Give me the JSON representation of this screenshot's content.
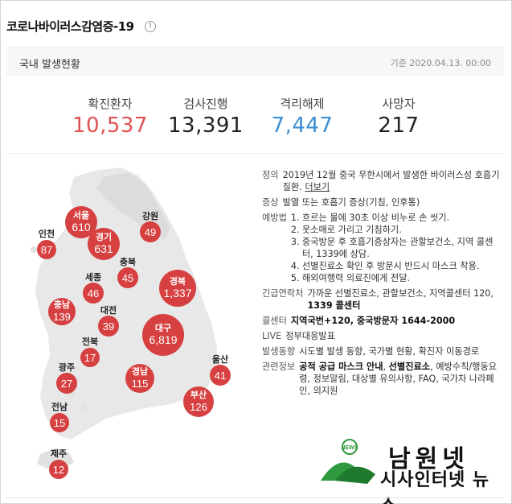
{
  "header": {
    "title": "코로나바이러스감염증-19",
    "info_icon": "!"
  },
  "subbar": {
    "title": "국내 발생현황",
    "date": "기준 2020.04.13. 00:00"
  },
  "stats": [
    {
      "label": "확진환자",
      "value": "10,537",
      "color": "#e05151"
    },
    {
      "label": "검사진행",
      "value": "13,391",
      "color": "#222222"
    },
    {
      "label": "격리해제",
      "value": "7,447",
      "color": "#3a8fd5"
    },
    {
      "label": "사망자",
      "value": "217",
      "color": "#222222"
    }
  ],
  "map": {
    "regions": [
      {
        "name": "서울",
        "count": "610"
      },
      {
        "name": "인천",
        "count": "87"
      },
      {
        "name": "경기",
        "count": "631"
      },
      {
        "name": "강원",
        "count": "49"
      },
      {
        "name": "충북",
        "count": "45"
      },
      {
        "name": "세종",
        "count": "46"
      },
      {
        "name": "충남",
        "count": "139"
      },
      {
        "name": "대전",
        "count": "39"
      },
      {
        "name": "경북",
        "count": "1,337"
      },
      {
        "name": "대구",
        "count": "6,819"
      },
      {
        "name": "전북",
        "count": "17"
      },
      {
        "name": "울산",
        "count": "41"
      },
      {
        "name": "광주",
        "count": "27"
      },
      {
        "name": "경남",
        "count": "115"
      },
      {
        "name": "부산",
        "count": "126"
      },
      {
        "name": "전남",
        "count": "15"
      },
      {
        "name": "제주",
        "count": "12"
      }
    ],
    "colors": {
      "bubble": "#d64040",
      "land": "#e8e8e8"
    }
  },
  "info": {
    "definition": {
      "key": "정의",
      "text": "2019년 12월 중국 우한시에서 발생한 바이러스성 호흡기 질환.",
      "link": "더보기"
    },
    "symptoms": {
      "key": "증상",
      "text": "발열 또는 호흡기 증상(기침, 인후통)"
    },
    "prevention": {
      "key": "예방법",
      "items": [
        {
          "n": "1.",
          "text": "흐르는 물에 30초 이상 비누로 손 씻기."
        },
        {
          "n": "2.",
          "text": "옷소매로 가리고 기침하기."
        },
        {
          "n": "3.",
          "text": "중국방문 후 호흡기증상자는 관할보건소, 지역 콜센터, 1339에 상담."
        },
        {
          "n": "4.",
          "text": "선별진료소 확인 후 방문시 반드시 마스크 착용."
        },
        {
          "n": "5.",
          "text": "해외여행력 의료진에게 전달."
        }
      ]
    },
    "emergency": {
      "key": "긴급연락처",
      "text": "가까운 선별진료소, 관할보건소, 지역콜센터 120,",
      "bold": "1339 콜센터"
    },
    "callcenter": {
      "key": "콜센터",
      "text": "지역국번+120, 중국방문자 1644-2000"
    },
    "live": {
      "key": "LIVE",
      "text": "정부대응발표"
    },
    "trend": {
      "key": "발생동향",
      "text": "시도별 발생 동향, 국가별 현황, 확진자 이동경로"
    },
    "related": {
      "key": "관련정보",
      "bold1": "공적 공급 마스크 안내",
      "sep": ",",
      "bold2": "선별진료소",
      "text": ", 예방수칙/행동요령, 정보알림, 대상별 유의사항, FAQ, 국가차 나라페인, 의지원"
    }
  },
  "watermark": {
    "top": "남원넷",
    "bottom": "시사인터넷 뉴스",
    "logo_icon": "namwon-logo-icon",
    "logo_text": "NEWS"
  }
}
